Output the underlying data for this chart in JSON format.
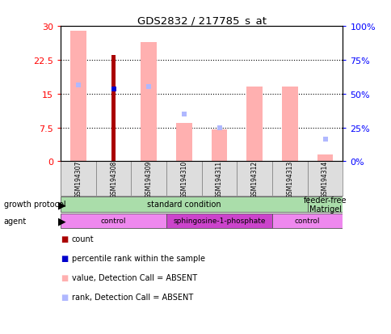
{
  "title": "GDS2832 / 217785_s_at",
  "samples": [
    "GSM194307",
    "GSM194308",
    "GSM194309",
    "GSM194310",
    "GSM194311",
    "GSM194312",
    "GSM194313",
    "GSM194314"
  ],
  "ylim_left": [
    0,
    30
  ],
  "ylim_right": [
    0,
    100
  ],
  "yticks_left": [
    0,
    7.5,
    15,
    22.5,
    30
  ],
  "yticks_right": [
    0,
    25,
    50,
    75,
    100
  ],
  "ytick_labels_left": [
    "0",
    "7.5",
    "15",
    "22.5",
    "30"
  ],
  "ytick_labels_right": [
    "0%",
    "25%",
    "50%",
    "75%",
    "100%"
  ],
  "value_bars": [
    29.0,
    null,
    26.5,
    8.5,
    7.0,
    16.5,
    16.5,
    1.5
  ],
  "rank_marker_y": [
    17.0,
    null,
    16.5,
    10.5,
    7.5,
    null,
    null,
    5.0
  ],
  "count_bar": [
    null,
    23.5,
    null,
    null,
    null,
    null,
    null,
    null
  ],
  "percentile_rank_y": [
    null,
    16.0,
    null,
    null,
    null,
    null,
    null,
    null
  ],
  "count_dot_y": [
    null,
    null,
    null,
    null,
    null,
    null,
    null,
    null
  ],
  "rank_absent_bars": [
    null,
    null,
    null,
    null,
    null,
    16.5,
    16.5,
    null
  ],
  "value_bar_color": "#FFB0B0",
  "rank_absent_color": "#FFB0B0",
  "rank_marker_color": "#B0B8FF",
  "count_bar_color": "#AA0000",
  "percentile_rank_color": "#0000CC",
  "growth_protocol_groups": [
    {
      "label": "standard condition",
      "start": 0,
      "end": 7,
      "color": "#AADDAA"
    },
    {
      "label": "feeder-free\nMatrigel",
      "start": 7,
      "end": 8,
      "color": "#AADDAA"
    }
  ],
  "agent_groups": [
    {
      "label": "control",
      "start": 0,
      "end": 3,
      "color": "#EE88EE"
    },
    {
      "label": "sphingosine-1-phosphate",
      "start": 3,
      "end": 6,
      "color": "#CC44CC"
    },
    {
      "label": "control",
      "start": 6,
      "end": 8,
      "color": "#EE88EE"
    }
  ],
  "legend_items": [
    {
      "color": "#AA0000",
      "label": "count"
    },
    {
      "color": "#0000CC",
      "label": "percentile rank within the sample"
    },
    {
      "color": "#FFB0B0",
      "label": "value, Detection Call = ABSENT"
    },
    {
      "color": "#B0B8FF",
      "label": "rank, Detection Call = ABSENT"
    }
  ]
}
